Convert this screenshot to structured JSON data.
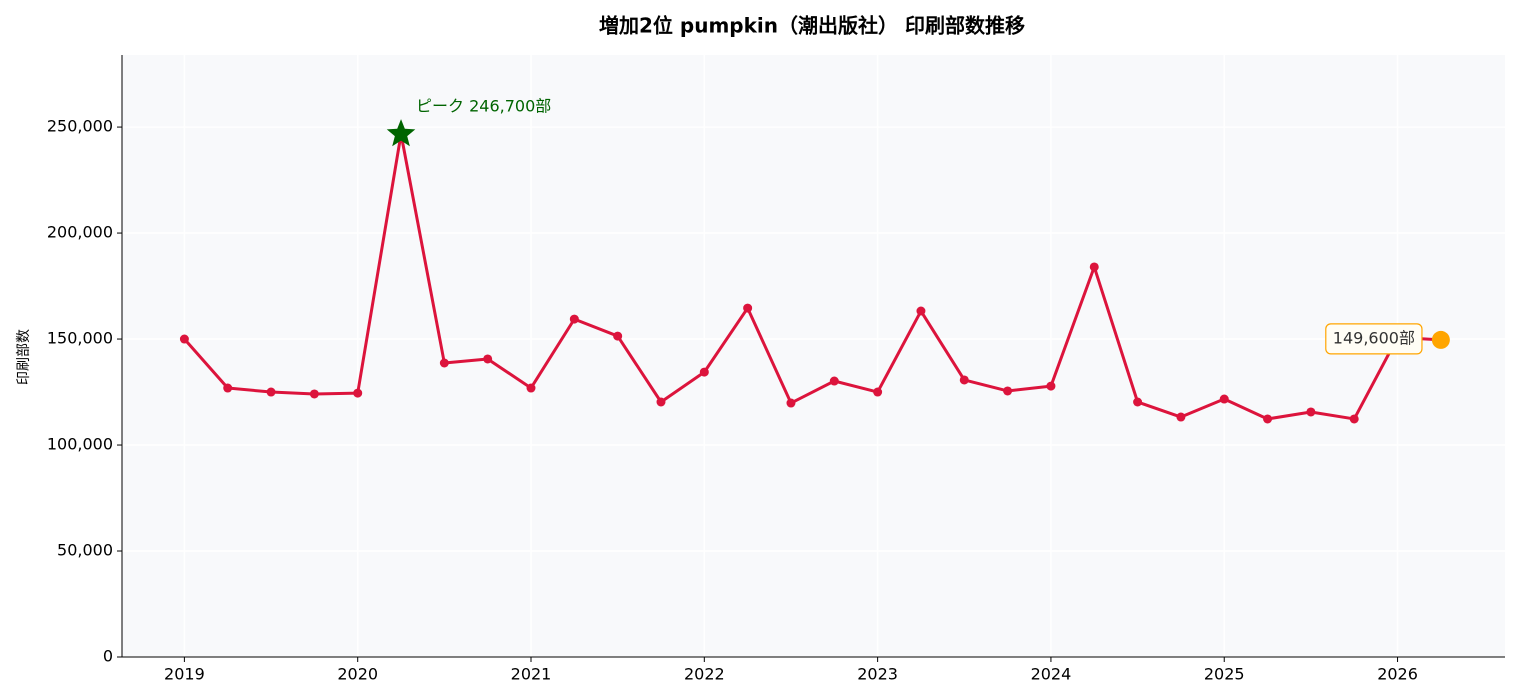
{
  "chart_data": {
    "type": "line",
    "title": "増加2位 pumpkin（潮出版社） 印刷部数推移",
    "y_label": "印刷部数",
    "x": [
      2019,
      2019.25,
      2019.5,
      2019.75,
      2020,
      2020.25,
      2020.5,
      2020.75,
      2021,
      2021.25,
      2021.5,
      2021.75,
      2022,
      2022.25,
      2022.5,
      2022.75,
      2023,
      2023.25,
      2023.5,
      2023.75,
      2024,
      2024.25,
      2024.5,
      2024.75,
      2025,
      2025.25,
      2025.5,
      2025.75,
      2026,
      2026.25
    ],
    "series": [
      {
        "name": "印刷部数",
        "color": "#dc143c",
        "values": [
          150000,
          126900,
          125000,
          124100,
          124500,
          246700,
          138700,
          140600,
          126900,
          159400,
          151400,
          120300,
          134400,
          164600,
          119800,
          130200,
          125000,
          163200,
          130700,
          125500,
          127800,
          184000,
          120300,
          113200,
          121700,
          112300,
          115600,
          112300,
          150800,
          149600
        ]
      }
    ],
    "annotations": [
      {
        "text": "ピーク 246,700部",
        "x": 2020.25,
        "y": 246700,
        "color": "#006400",
        "marker": "star"
      },
      {
        "text": "149,600部",
        "x": 2026.25,
        "y": 149600,
        "color": "#ffa500",
        "marker": "circle"
      }
    ],
    "xlim": [
      2018.64,
      2026.62
    ],
    "ylim": [
      0,
      284000
    ],
    "xticks": [
      2019,
      2020,
      2021,
      2022,
      2023,
      2024,
      2025,
      2026
    ],
    "yticks": [
      0,
      {
        "value": 50000,
        "label": "50,000"
      },
      {
        "value": 100000,
        "label": "100,000"
      },
      {
        "value": 150000,
        "label": "150,000"
      },
      {
        "value": 200000,
        "label": "200,000"
      },
      {
        "value": 250000,
        "label": "250,000"
      }
    ],
    "grid": true
  }
}
